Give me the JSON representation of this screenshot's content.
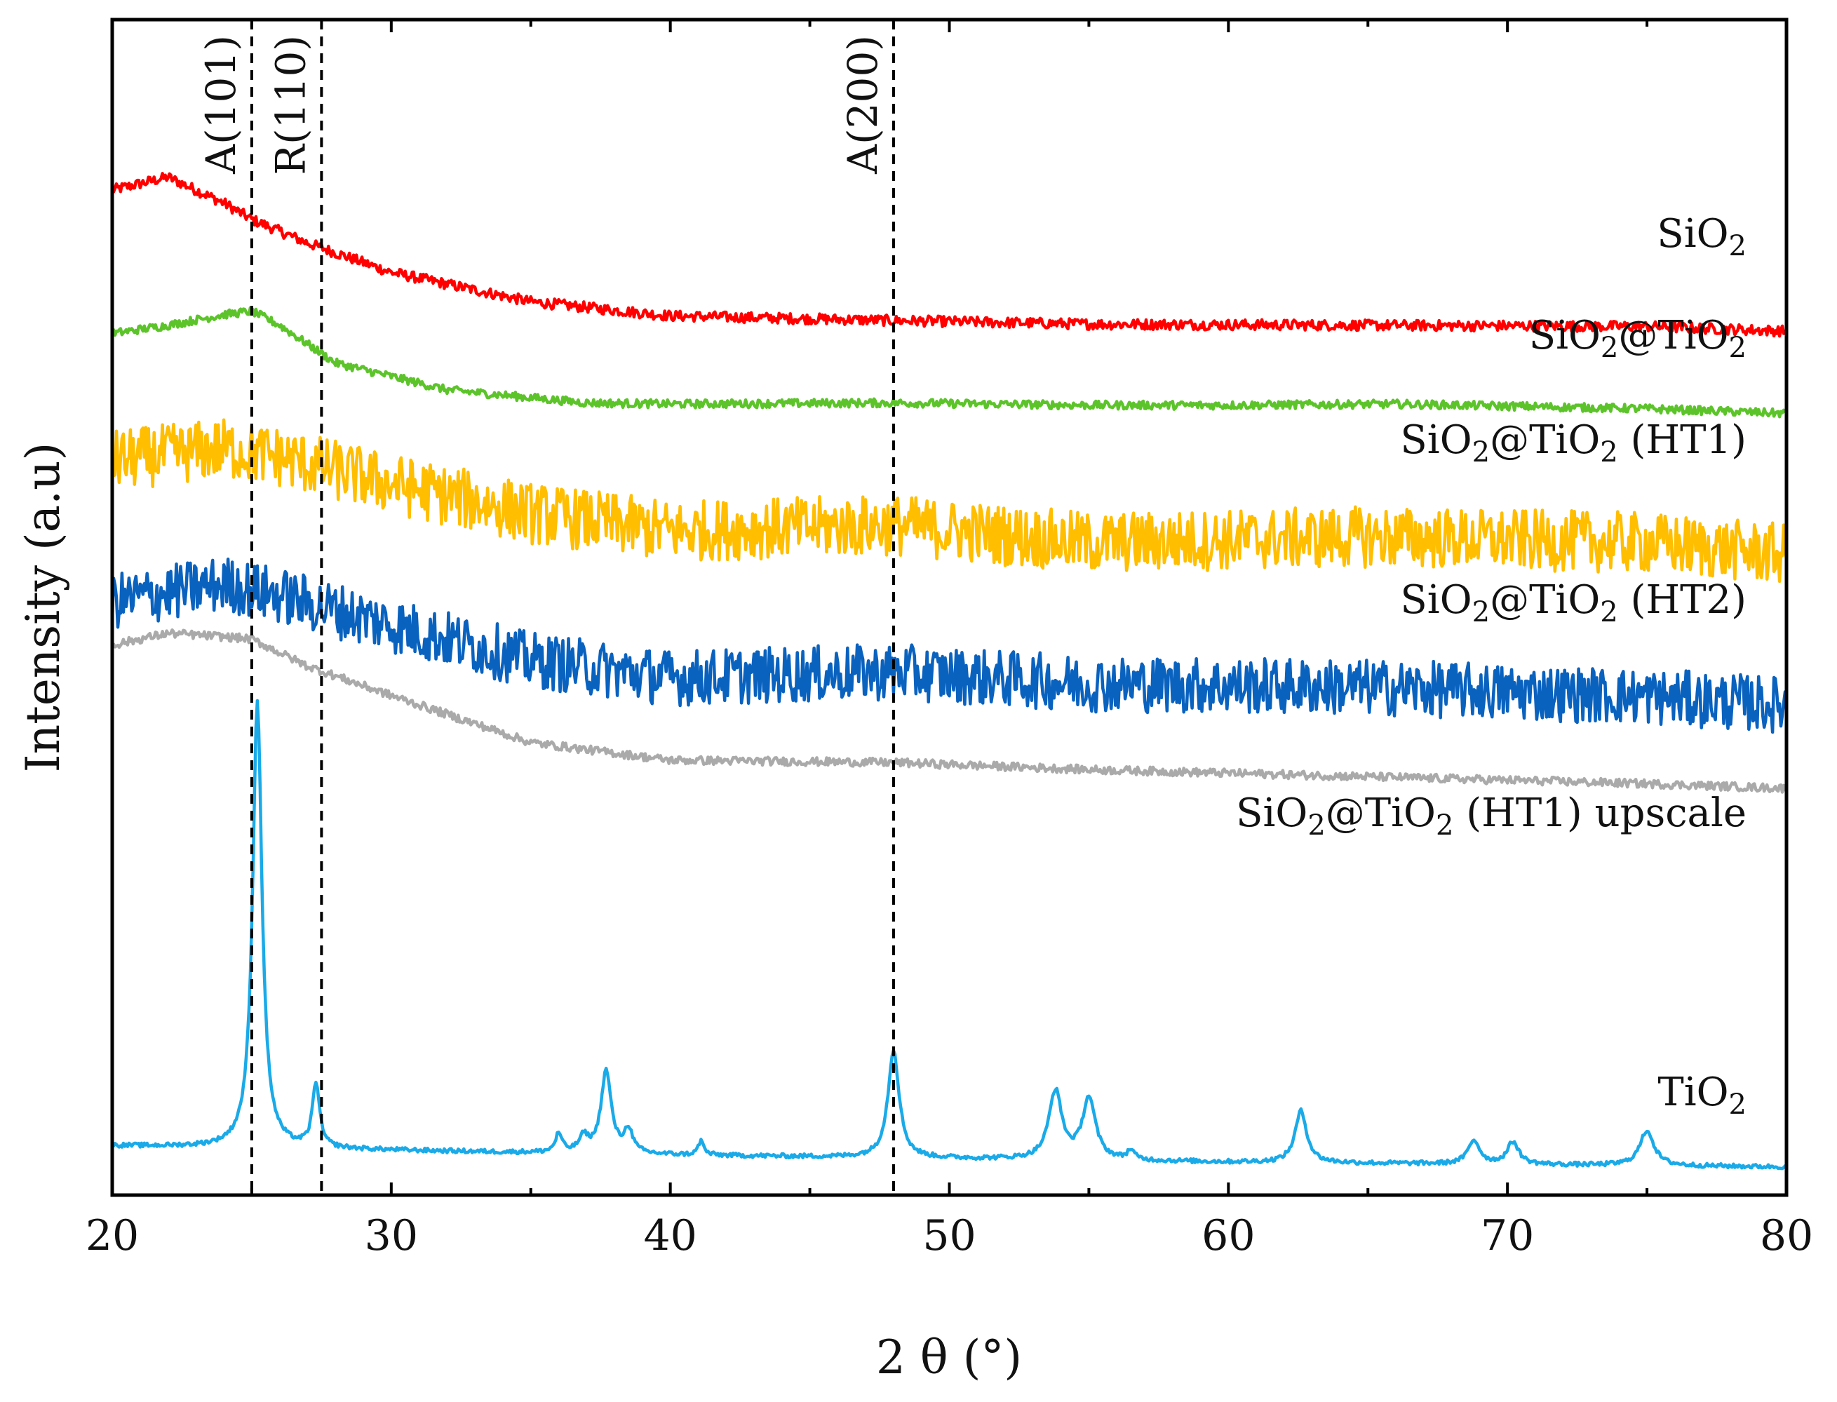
{
  "chart_data": {
    "type": "line",
    "title": "",
    "xlabel": "2 θ (°)",
    "ylabel": "Intensity (a.u)",
    "xlim": [
      20,
      80
    ],
    "ylim": [
      0,
      100
    ],
    "grid": false,
    "x_ticks": [
      20,
      30,
      40,
      50,
      60,
      70,
      80
    ],
    "x_tick_labels": [
      "20",
      "30",
      "40",
      "50",
      "60",
      "70",
      "80"
    ],
    "legend_placement": "right, next to each trace",
    "reference_lines": [
      {
        "x": 25.0,
        "label": "A(101)"
      },
      {
        "x": 27.5,
        "label": "R(110)"
      },
      {
        "x": 48.0,
        "label": "A(200)"
      }
    ],
    "series": [
      {
        "name": "SiO2",
        "label_main": "SiO",
        "label_sub": "2",
        "color": "#ff0000",
        "noise": 0.45,
        "points": [
          [
            20,
            85.5
          ],
          [
            22,
            86.6
          ],
          [
            24,
            84.4
          ],
          [
            25,
            83.0
          ],
          [
            27,
            81.0
          ],
          [
            30,
            78.5
          ],
          [
            35,
            76.0
          ],
          [
            40,
            74.8
          ],
          [
            48,
            74.4
          ],
          [
            55,
            74.1
          ],
          [
            65,
            74.0
          ],
          [
            75,
            73.9
          ],
          [
            80,
            73.5
          ]
        ]
      },
      {
        "name": "SiO2@TiO2",
        "label_main": "SiO",
        "label_sub": "2",
        "label_main2": "@TiO",
        "label_sub2": "2",
        "label_suffix": "",
        "color": "#5cc42a",
        "noise": 0.35,
        "points": [
          [
            20,
            73.3
          ],
          [
            22,
            74.0
          ],
          [
            24,
            74.9
          ],
          [
            25,
            75.2
          ],
          [
            26,
            74.0
          ],
          [
            28,
            70.8
          ],
          [
            32,
            68.5
          ],
          [
            37,
            67.4
          ],
          [
            40,
            67.3
          ],
          [
            48,
            67.4
          ],
          [
            55,
            67.2
          ],
          [
            60,
            67.2
          ],
          [
            66,
            67.3
          ],
          [
            75,
            66.9
          ],
          [
            80,
            66.5
          ]
        ]
      },
      {
        "name": "SiO2@TiO2 (HT1)",
        "label_main": "SiO",
        "label_sub": "2",
        "label_main2": "@TiO",
        "label_sub2": "2",
        "label_suffix": " (HT1)",
        "color": "#ffbe00",
        "noise": 2.6,
        "points": [
          [
            20,
            62.5
          ],
          [
            24,
            63.5
          ],
          [
            26,
            62.8
          ],
          [
            30,
            60.5
          ],
          [
            35,
            58.0
          ],
          [
            40,
            56.5
          ],
          [
            48,
            57.0
          ],
          [
            55,
            55.5
          ],
          [
            65,
            56.0
          ],
          [
            75,
            55.5
          ],
          [
            80,
            54.5
          ]
        ]
      },
      {
        "name": "SiO2@TiO2 (HT2)",
        "label_main": "SiO",
        "label_sub": "2",
        "label_main2": "@TiO",
        "label_sub2": "2",
        "label_suffix": " (HT2)",
        "color": "#0a62bf",
        "noise": 2.4,
        "points": [
          [
            20,
            50.5
          ],
          [
            24,
            52.0
          ],
          [
            26,
            51.0
          ],
          [
            30,
            48.5
          ],
          [
            35,
            45.5
          ],
          [
            40,
            44.0
          ],
          [
            48,
            44.5
          ],
          [
            55,
            43.5
          ],
          [
            65,
            43.2
          ],
          [
            75,
            42.4
          ],
          [
            80,
            41.7
          ]
        ]
      },
      {
        "name": "SiO2@TiO2 (HT1) upscale",
        "label_main": "SiO",
        "label_sub": "2",
        "label_main2": "@TiO",
        "label_sub2": "2",
        "label_suffix": " (HT1) upscale",
        "color": "#aaaaaa",
        "noise": 0.35,
        "points": [
          [
            20,
            46.8
          ],
          [
            22,
            47.8
          ],
          [
            24,
            47.5
          ],
          [
            25,
            47.3
          ],
          [
            27,
            45.0
          ],
          [
            30,
            42.5
          ],
          [
            35,
            38.5
          ],
          [
            40,
            37.0
          ],
          [
            48,
            36.8
          ],
          [
            55,
            36.2
          ],
          [
            65,
            35.6
          ],
          [
            75,
            35.0
          ],
          [
            80,
            34.6
          ]
        ]
      },
      {
        "name": "TiO2",
        "label_main": "TiO",
        "label_sub": "2",
        "color": "#1aaae8",
        "noise": 0.18,
        "points": [
          [
            20,
            4.2
          ],
          [
            40,
            3.4
          ],
          [
            60,
            2.8
          ],
          [
            80,
            2.4
          ]
        ],
        "peaks": [
          {
            "x": 25.2,
            "height": 38.0,
            "width": 0.2
          },
          {
            "x": 27.3,
            "height": 5.5,
            "width": 0.15
          },
          {
            "x": 36.0,
            "height": 1.6,
            "width": 0.14
          },
          {
            "x": 36.9,
            "height": 1.3,
            "width": 0.2
          },
          {
            "x": 37.7,
            "height": 7.0,
            "width": 0.22
          },
          {
            "x": 38.5,
            "height": 2.0,
            "width": 0.18
          },
          {
            "x": 41.1,
            "height": 1.2,
            "width": 0.12
          },
          {
            "x": 48.0,
            "height": 9.2,
            "width": 0.24
          },
          {
            "x": 53.8,
            "height": 5.8,
            "width": 0.28
          },
          {
            "x": 55.0,
            "height": 5.2,
            "width": 0.28
          },
          {
            "x": 56.5,
            "height": 0.8,
            "width": 0.15
          },
          {
            "x": 62.6,
            "height": 4.4,
            "width": 0.25
          },
          {
            "x": 68.8,
            "height": 2.0,
            "width": 0.25
          },
          {
            "x": 70.2,
            "height": 1.9,
            "width": 0.25
          },
          {
            "x": 75.0,
            "height": 3.0,
            "width": 0.3
          }
        ]
      }
    ]
  }
}
